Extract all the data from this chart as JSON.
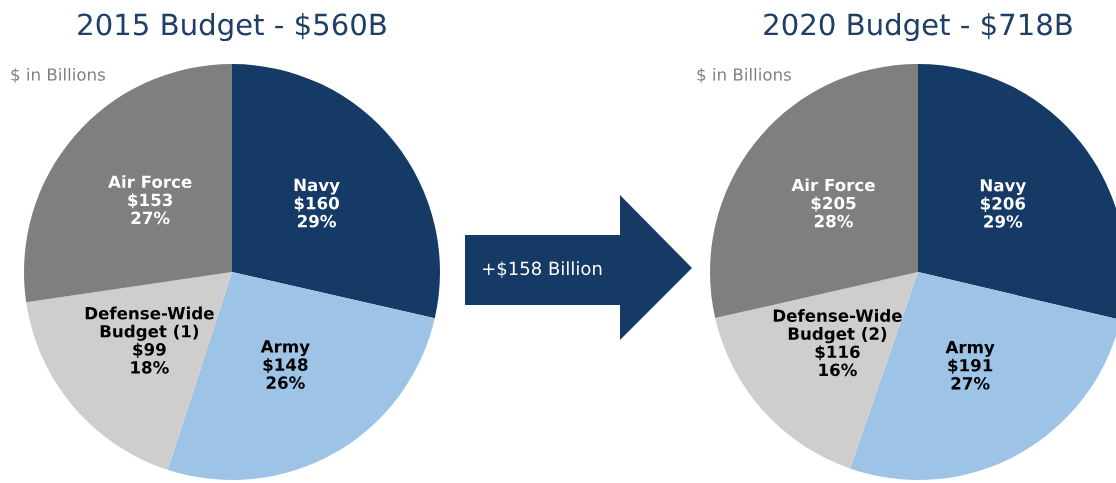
{
  "chart_data": [
    {
      "type": "pie",
      "title": "2015 Budget - $560B",
      "annotations": [
        "$ in Billions"
      ],
      "categories": [
        "Navy",
        "Army",
        "Defense-Wide\nBudget (1)",
        "Air Force"
      ],
      "values": [
        160,
        148,
        99,
        153
      ],
      "value_labels": [
        "$160\n29%",
        "$148\n26%",
        "$99\n18%",
        "$153\n27%"
      ],
      "colors": [
        "#163a66",
        "#9dc3e6",
        "#d0cecd",
        "#7f7f7f"
      ]
    },
    {
      "type": "other",
      "annotations": [
        "+$158 Billion"
      ]
    },
    {
      "type": "pie",
      "title": "2020 Budget - $718B",
      "annotations": [
        "$ in Billions"
      ],
      "categories": [
        "Navy",
        "Army",
        "Defense-Wide\nBudget (2)",
        "Air Force"
      ],
      "values": [
        206,
        191,
        116,
        205
      ],
      "value_labels": [
        "$206\n29%",
        "$191\n27%",
        "$116\n16%",
        "$205\n28%"
      ],
      "colors": [
        "#163a66",
        "#9dc3e6",
        "#d0cecd",
        "#7f7f7f"
      ]
    }
  ]
}
